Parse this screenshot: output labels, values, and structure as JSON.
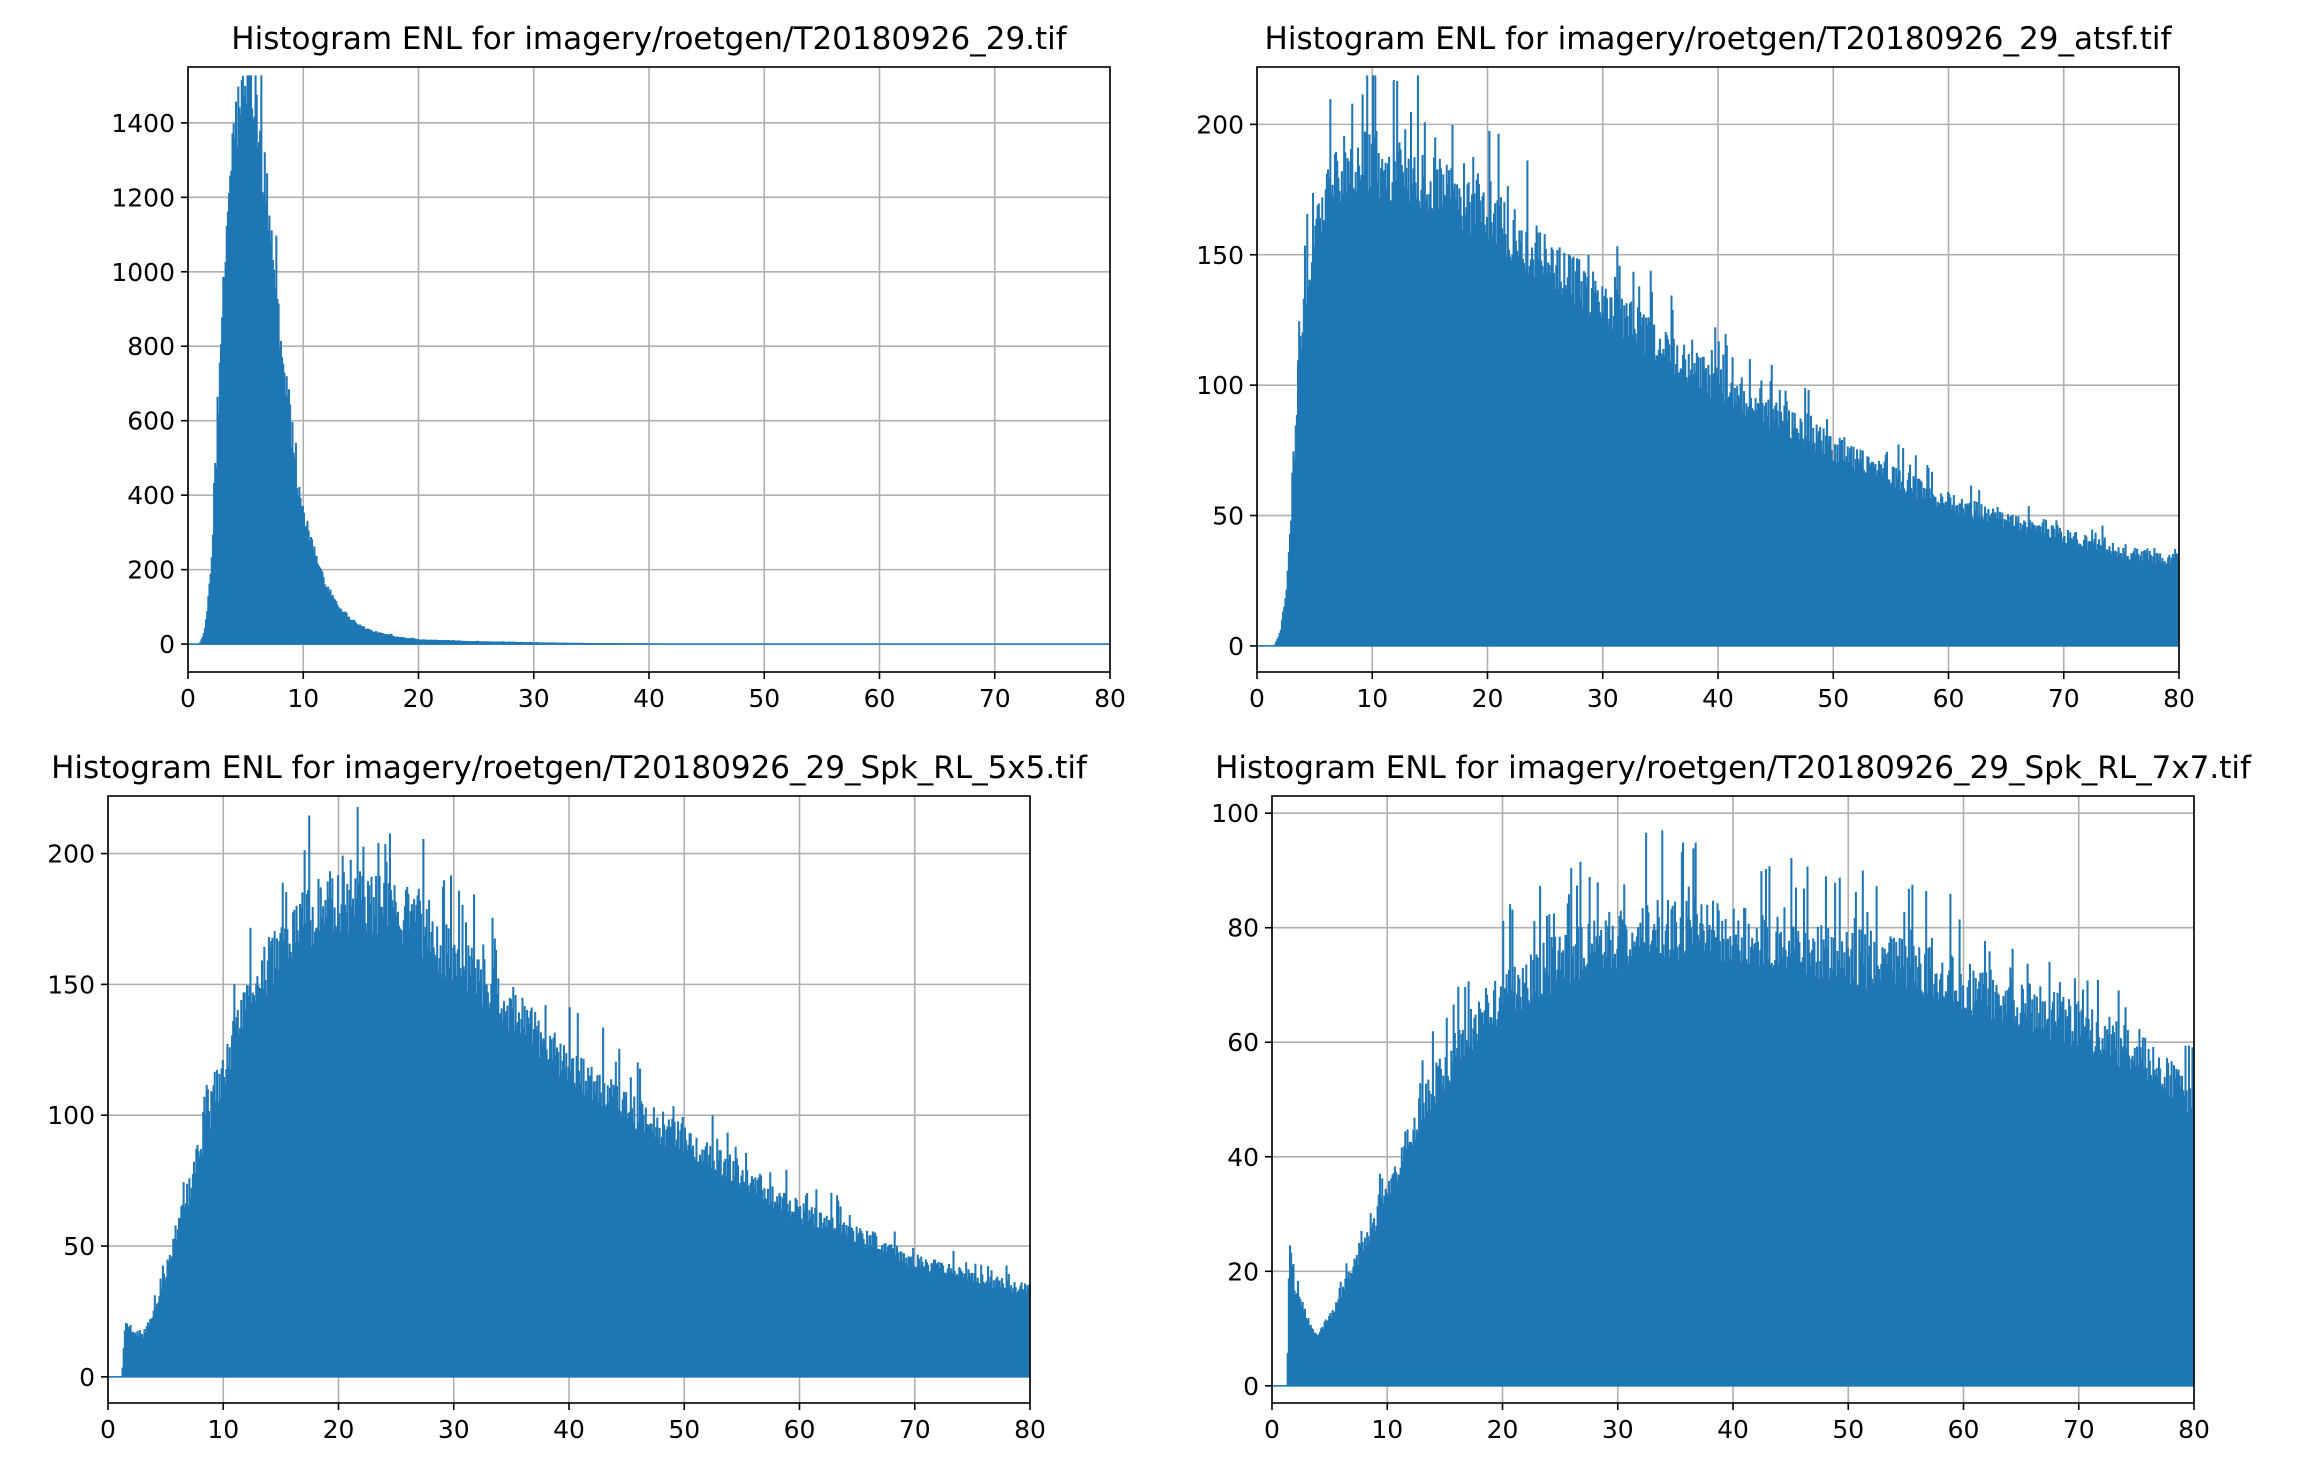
{
  "colors": {
    "bar": "#1f77b4",
    "grid": "#b0b0b0",
    "axis": "#000000"
  },
  "chart_data": [
    {
      "type": "bar",
      "title": "Histogram ENL for imagery/roetgen/T20180926_29.tif",
      "xlabel": "",
      "ylabel": "",
      "xlim": [
        0,
        80
      ],
      "ylim": [
        -75,
        1550
      ],
      "xticks": [
        0,
        10,
        20,
        30,
        40,
        50,
        60,
        70,
        80
      ],
      "yticks": [
        0,
        200,
        400,
        600,
        800,
        1000,
        1200,
        1400
      ],
      "grid": true,
      "x": [
        0,
        1,
        1.5,
        2,
        2.5,
        3,
        3.5,
        4,
        4.5,
        5,
        5.3,
        5.6,
        6,
        6.5,
        7,
        7.5,
        8,
        8.5,
        9,
        9.5,
        10,
        11,
        12,
        13,
        14,
        15,
        16,
        18,
        20,
        25,
        30,
        35,
        40.8,
        41,
        80
      ],
      "values": [
        0,
        0,
        40,
        200,
        520,
        900,
        1200,
        1380,
        1440,
        1475,
        1478,
        1460,
        1400,
        1290,
        1150,
        990,
        820,
        670,
        540,
        430,
        350,
        240,
        160,
        105,
        70,
        48,
        34,
        20,
        12,
        7,
        4,
        2,
        1,
        0,
        0
      ]
    },
    {
      "type": "bar",
      "title": "Histogram ENL for imagery/roetgen/T20180926_29_atsf.tif",
      "xlabel": "",
      "ylabel": "",
      "xlim": [
        0,
        80
      ],
      "ylim": [
        -10,
        222
      ],
      "xticks": [
        0,
        10,
        20,
        30,
        40,
        50,
        60,
        70,
        80
      ],
      "yticks": [
        0,
        50,
        100,
        150,
        200
      ],
      "grid": true,
      "x": [
        0,
        1.5,
        2,
        2.5,
        3,
        3.5,
        4,
        5,
        6,
        7,
        8,
        10,
        12,
        14,
        16,
        18,
        20,
        25,
        30,
        35,
        40,
        45,
        50,
        55,
        60,
        65,
        70,
        75,
        80
      ],
      "values": [
        0,
        0,
        5,
        20,
        50,
        100,
        130,
        160,
        172,
        180,
        185,
        185,
        182,
        180,
        176,
        170,
        165,
        148,
        132,
        115,
        100,
        88,
        76,
        65,
        55,
        48,
        42,
        36,
        32
      ]
    },
    {
      "type": "bar",
      "title": "Histogram ENL for imagery/roetgen/T20180926_29_Spk_RL_5x5.tif",
      "xlabel": "",
      "ylabel": "",
      "xlim": [
        0,
        80
      ],
      "ylim": [
        -10,
        222
      ],
      "xticks": [
        0,
        10,
        20,
        30,
        40,
        50,
        60,
        70,
        80
      ],
      "yticks": [
        0,
        50,
        100,
        150,
        200
      ],
      "grid": true,
      "x": [
        0,
        1.2,
        1.5,
        2,
        3,
        4,
        5,
        6,
        7,
        8,
        9,
        10,
        12,
        14,
        16,
        18,
        20,
        22,
        24,
        26,
        28,
        30,
        35,
        40,
        45,
        50,
        55,
        60,
        65,
        70,
        75,
        80
      ],
      "values": [
        0,
        0,
        22,
        18,
        15,
        25,
        40,
        55,
        70,
        88,
        103,
        118,
        140,
        158,
        170,
        178,
        182,
        182,
        180,
        175,
        168,
        160,
        140,
        120,
        103,
        90,
        77,
        63,
        54,
        44,
        38,
        33
      ]
    },
    {
      "type": "bar",
      "title": "Histogram ENL for imagery/roetgen/T20180926_29_Spk_RL_7x7.tif",
      "xlabel": "",
      "ylabel": "",
      "xlim": [
        0,
        80
      ],
      "ylim": [
        -3,
        103
      ],
      "xticks": [
        0,
        10,
        20,
        30,
        40,
        50,
        60,
        70,
        80
      ],
      "yticks": [
        0,
        20,
        40,
        60,
        80,
        100
      ],
      "grid": true,
      "x": [
        0,
        1.3,
        1.5,
        2,
        2.5,
        3,
        3.5,
        4,
        5,
        6,
        7,
        8,
        9,
        10,
        12,
        14,
        16,
        18,
        20,
        22,
        25,
        28,
        30,
        32,
        35,
        38,
        40,
        45,
        50,
        55,
        60,
        65,
        70,
        75,
        80
      ],
      "values": [
        0,
        0,
        24,
        17,
        15,
        12,
        10,
        9,
        12,
        16,
        20,
        25,
        29,
        34,
        44,
        52,
        58,
        64,
        68,
        71,
        74,
        77,
        78,
        79,
        80,
        80,
        79,
        77,
        75,
        73,
        70,
        67,
        63,
        58,
        50
      ]
    }
  ]
}
